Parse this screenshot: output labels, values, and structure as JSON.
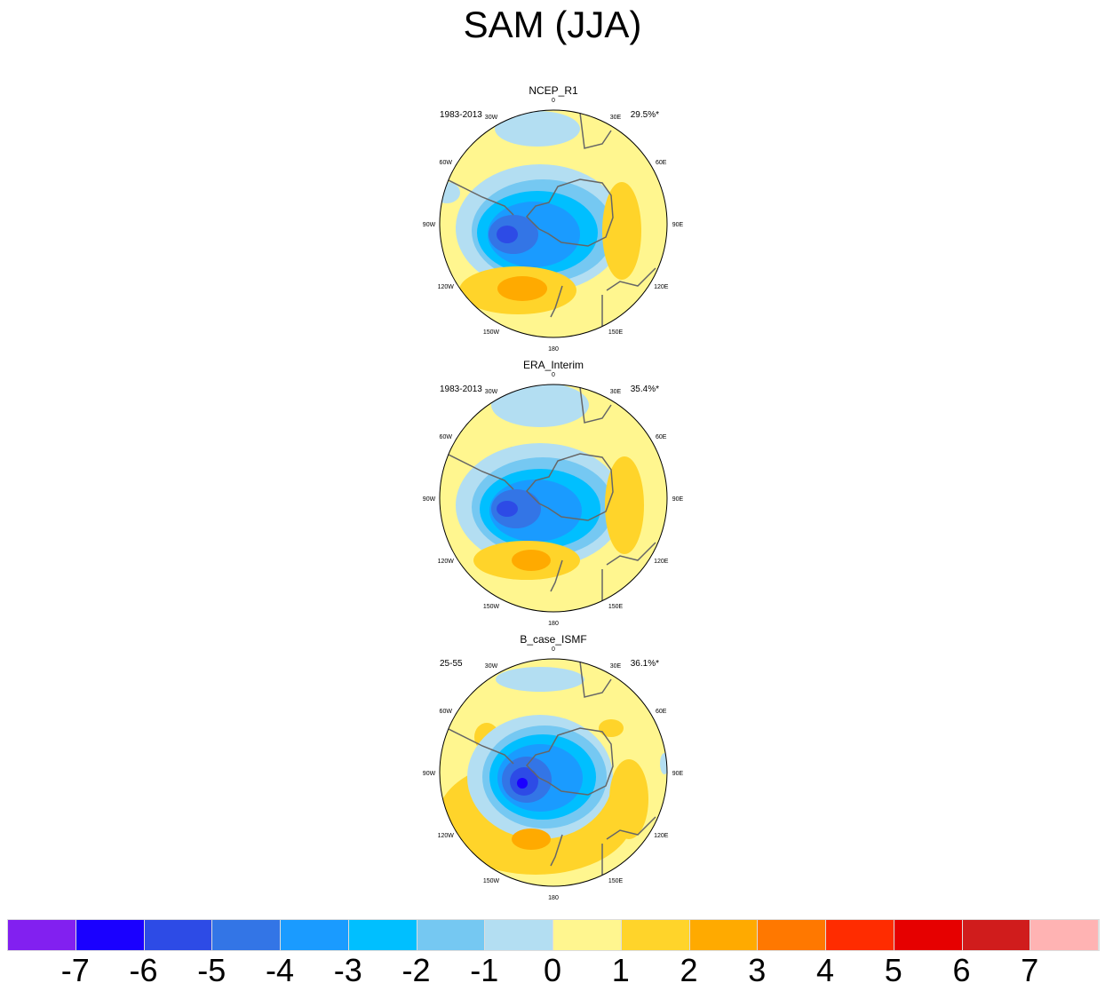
{
  "title": "SAM (JJA)",
  "panels": [
    {
      "name": "NCEP_R1",
      "period": "1983-2013",
      "variance": "29.5%*"
    },
    {
      "name": "ERA_Interim",
      "period": "1983-2013",
      "variance": "35.4%*"
    },
    {
      "name": "B_case_ISMF",
      "period": "25-55",
      "variance": "36.1%*"
    }
  ],
  "lon_labels": [
    "0",
    "30E",
    "60E",
    "90E",
    "120E",
    "150E",
    "180",
    "150W",
    "120W",
    "90W",
    "60W",
    "30W"
  ],
  "colorbar": {
    "colors": [
      "#8220f0",
      "#1a00ff",
      "#2d4be6",
      "#3375e6",
      "#1a9bff",
      "#00bfff",
      "#75c8f2",
      "#b3def2",
      "#fff68f",
      "#ffd42a",
      "#ffaa00",
      "#ff7800",
      "#ff2c00",
      "#e60000",
      "#d01c1c",
      "#ffb3b3"
    ],
    "ticks": [
      "-7",
      "-6",
      "-5",
      "-4",
      "-3",
      "-2",
      "-1",
      "0",
      "1",
      "2",
      "3",
      "4",
      "5",
      "6",
      "7"
    ]
  },
  "chart_data": {
    "type": "heatmap",
    "title": "SAM (JJA)",
    "projection": "south polar stereographic",
    "units_levels": [
      -7,
      -6,
      -5,
      -4,
      -3,
      -2,
      -1,
      0,
      1,
      2,
      3,
      4,
      5,
      6,
      7
    ],
    "panels": [
      {
        "name": "NCEP_R1",
        "min_level": -6,
        "max_level": 3
      },
      {
        "name": "ERA_Interim",
        "min_level": -6,
        "max_level": 3
      },
      {
        "name": "B_case_ISMF",
        "min_level": -7,
        "max_level": 3
      }
    ]
  }
}
